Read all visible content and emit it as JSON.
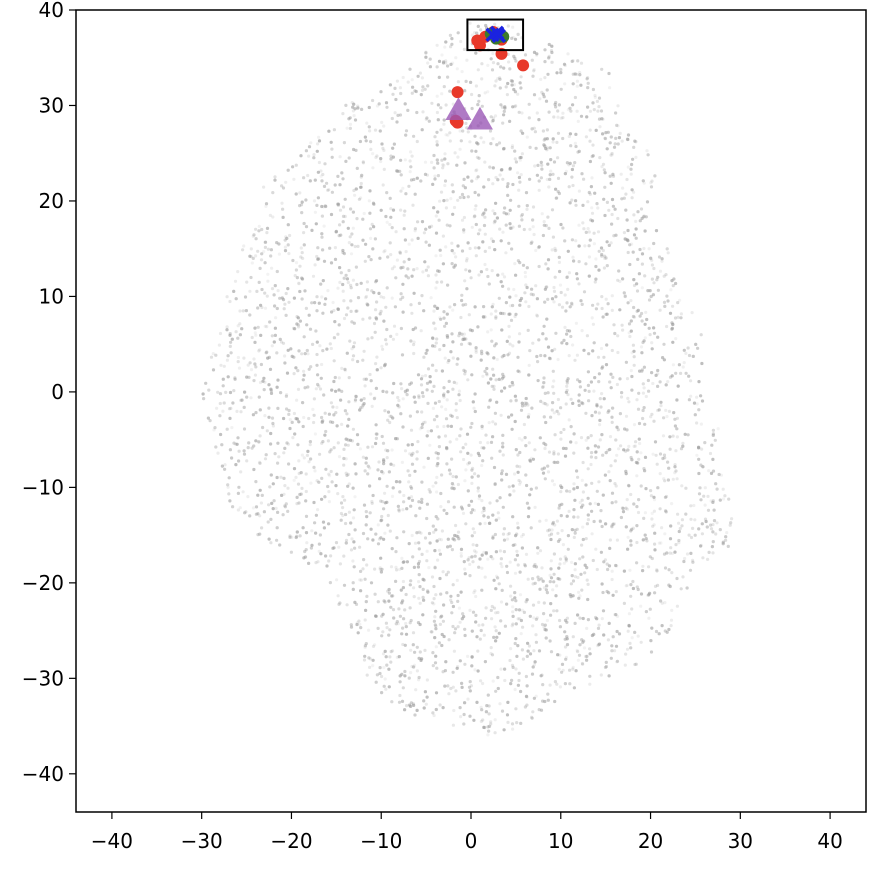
{
  "chart_data": {
    "type": "scatter",
    "title": "",
    "xlabel": "",
    "ylabel": "",
    "xlim": [
      -44,
      44
    ],
    "ylim": [
      -44,
      40
    ],
    "x_ticks": [
      -40,
      -30,
      -20,
      -10,
      0,
      10,
      20,
      30,
      40
    ],
    "y_ticks": [
      40,
      30,
      20,
      10,
      0,
      -10,
      -20,
      -30,
      -40
    ],
    "x_tick_labels": [
      "−40",
      "−30",
      "−20",
      "−10",
      "0",
      "10",
      "20",
      "30",
      "40"
    ],
    "y_tick_labels": [
      "40",
      "30",
      "20",
      "10",
      "0",
      "−10",
      "−20",
      "−30",
      "−40"
    ],
    "grid": false,
    "background_cloud": {
      "color": "#9a9a9a",
      "description_count": 9000,
      "outline": [
        [
          -2,
          38.5
        ],
        [
          3,
          38.8
        ],
        [
          8,
          37
        ],
        [
          12,
          35
        ],
        [
          16,
          33.5
        ],
        [
          17,
          30
        ],
        [
          18,
          27
        ],
        [
          20,
          25
        ],
        [
          21,
          24
        ],
        [
          20,
          20
        ],
        [
          22,
          15
        ],
        [
          24,
          10
        ],
        [
          26,
          6
        ],
        [
          26.5,
          2
        ],
        [
          26,
          -3
        ],
        [
          28,
          -3
        ],
        [
          27,
          -6
        ],
        [
          29,
          -12
        ],
        [
          30,
          -15
        ],
        [
          28,
          -17
        ],
        [
          25,
          -18
        ],
        [
          24,
          -22
        ],
        [
          22,
          -25
        ],
        [
          20,
          -28
        ],
        [
          15,
          -30
        ],
        [
          10,
          -32
        ],
        [
          6,
          -35
        ],
        [
          2,
          -36
        ],
        [
          -2,
          -35
        ],
        [
          -6,
          -34
        ],
        [
          -8,
          -33
        ],
        [
          -11,
          -31
        ],
        [
          -12,
          -29
        ],
        [
          -13,
          -26
        ],
        [
          -15,
          -22
        ],
        [
          -16,
          -20
        ],
        [
          -18,
          -18
        ],
        [
          -21,
          -17
        ],
        [
          -24,
          -15
        ],
        [
          -27,
          -12
        ],
        [
          -28,
          -8
        ],
        [
          -29,
          -4
        ],
        [
          -30,
          0
        ],
        [
          -28.5,
          5
        ],
        [
          -28,
          10
        ],
        [
          -26,
          14
        ],
        [
          -24,
          18
        ],
        [
          -23,
          22
        ],
        [
          -20,
          25
        ],
        [
          -17,
          27
        ],
        [
          -14,
          30
        ],
        [
          -11,
          32
        ],
        [
          -8,
          33
        ],
        [
          -6,
          35
        ],
        [
          -3,
          37
        ]
      ]
    },
    "series": [
      {
        "marker": "circle",
        "color": "#e8392a",
        "points": [
          [
            0.7,
            36.8
          ],
          [
            1.0,
            36.3
          ],
          [
            1.6,
            37.2
          ],
          [
            2.5,
            37.7
          ],
          [
            3.4,
            36.9
          ],
          [
            3.4,
            35.4
          ],
          [
            5.8,
            34.2
          ],
          [
            -1.5,
            31.4
          ],
          [
            -1.7,
            28.4
          ],
          [
            -1.5,
            28.2
          ]
        ]
      },
      {
        "marker": "circle",
        "color": "#3d7a2a",
        "points": [
          [
            2.2,
            37.5
          ],
          [
            3.6,
            37.2
          ],
          [
            2.8,
            37.0
          ]
        ]
      },
      {
        "marker": "x",
        "color": "#1a22e0",
        "points": [
          [
            2.4,
            37.4
          ],
          [
            3.1,
            37.3
          ],
          [
            2.9,
            37.6
          ]
        ]
      },
      {
        "marker": "triangle",
        "color": "#9b59b6",
        "points": [
          [
            -1.4,
            29.5
          ],
          [
            1.0,
            28.5
          ]
        ]
      }
    ],
    "highlight_box": {
      "x_range": [
        -0.4,
        5.8
      ],
      "y_range": [
        35.8,
        39.0
      ]
    }
  }
}
